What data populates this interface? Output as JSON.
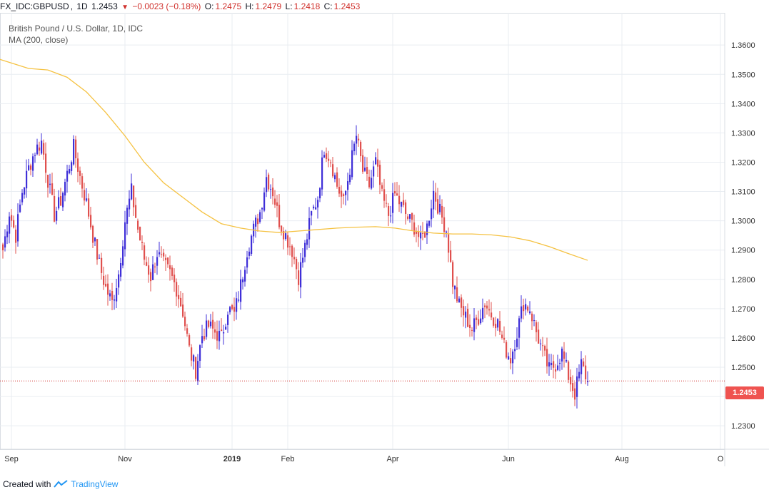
{
  "header": {
    "symbol": "FX_IDC:GBPUSD",
    "interval": "1D",
    "last": "1.2453",
    "change": "−0.0023 (−0.18%)",
    "o_label": "O:",
    "o_value": "1.2475",
    "h_label": "H:",
    "h_value": "1.2479",
    "l_label": "L:",
    "l_value": "1.2418",
    "c_label": "C:",
    "c_value": "1.2453"
  },
  "legend": {
    "title": "British Pound / U.S. Dollar, 1D, IDC",
    "indicator": "MA (200, close)"
  },
  "footer": {
    "created_with": "Created with",
    "brand": "TradingView"
  },
  "price_tag": "1.2453",
  "colors": {
    "up": "#3f2fd8",
    "down": "#e0504e",
    "ma": "#f5c242",
    "grid": "#e9edf2",
    "last_line": "#d0312d"
  },
  "chart_data": {
    "type": "candlestick",
    "title": "British Pound / U.S. Dollar, 1D, IDC",
    "ylim": [
      1.222,
      1.371
    ],
    "y_ticks": [
      "1.3600",
      "1.3500",
      "1.3400",
      "1.3300",
      "1.3200",
      "1.3100",
      "1.3000",
      "1.2900",
      "1.2800",
      "1.2700",
      "1.2600",
      "1.2500",
      "1.2400",
      "1.2300"
    ],
    "x_ticks": [
      "Sep",
      "Nov",
      "2019",
      "Feb",
      "Apr",
      "Jun",
      "Aug",
      "O"
    ],
    "last_price": 1.2453,
    "close_path": [
      [
        0,
        1.29
      ],
      [
        3,
        1.303
      ],
      [
        6,
        1.295
      ],
      [
        9,
        1.31
      ],
      [
        12,
        1.318
      ],
      [
        15,
        1.324
      ],
      [
        18,
        1.327
      ],
      [
        21,
        1.314
      ],
      [
        24,
        1.302
      ],
      [
        27,
        1.307
      ],
      [
        30,
        1.316
      ],
      [
        33,
        1.325
      ],
      [
        36,
        1.315
      ],
      [
        39,
        1.306
      ],
      [
        42,
        1.295
      ],
      [
        45,
        1.285
      ],
      [
        48,
        1.277
      ],
      [
        51,
        1.272
      ],
      [
        54,
        1.282
      ],
      [
        57,
        1.3
      ],
      [
        60,
        1.31
      ],
      [
        63,
        1.297
      ],
      [
        66,
        1.287
      ],
      [
        69,
        1.281
      ],
      [
        72,
        1.289
      ],
      [
        75,
        1.285
      ],
      [
        78,
        1.282
      ],
      [
        81,
        1.277
      ],
      [
        84,
        1.269
      ],
      [
        87,
        1.256
      ],
      [
        90,
        1.249
      ],
      [
        93,
        1.261
      ],
      [
        96,
        1.264
      ],
      [
        99,
        1.262
      ],
      [
        102,
        1.26
      ],
      [
        105,
        1.27
      ],
      [
        108,
        1.268
      ],
      [
        111,
        1.278
      ],
      [
        114,
        1.29
      ],
      [
        117,
        1.297
      ],
      [
        120,
        1.303
      ],
      [
        123,
        1.315
      ],
      [
        126,
        1.31
      ],
      [
        129,
        1.3
      ],
      [
        132,
        1.295
      ],
      [
        135,
        1.29
      ],
      [
        138,
        1.281
      ],
      [
        141,
        1.291
      ],
      [
        144,
        1.302
      ],
      [
        147,
        1.308
      ],
      [
        150,
        1.325
      ],
      [
        153,
        1.321
      ],
      [
        156,
        1.312
      ],
      [
        159,
        1.306
      ],
      [
        162,
        1.318
      ],
      [
        165,
        1.329
      ],
      [
        168,
        1.317
      ],
      [
        171,
        1.312
      ],
      [
        174,
        1.32
      ],
      [
        177,
        1.308
      ],
      [
        180,
        1.302
      ],
      [
        183,
        1.309
      ],
      [
        186,
        1.305
      ],
      [
        189,
        1.301
      ],
      [
        192,
        1.298
      ],
      [
        195,
        1.293
      ],
      [
        198,
        1.298
      ],
      [
        201,
        1.31
      ],
      [
        204,
        1.303
      ],
      [
        207,
        1.297
      ],
      [
        210,
        1.279
      ],
      [
        213,
        1.271
      ],
      [
        216,
        1.267
      ],
      [
        219,
        1.263
      ],
      [
        222,
        1.267
      ],
      [
        225,
        1.272
      ],
      [
        228,
        1.268
      ],
      [
        231,
        1.265
      ],
      [
        234,
        1.257
      ],
      [
        237,
        1.253
      ],
      [
        240,
        1.262
      ],
      [
        243,
        1.272
      ],
      [
        246,
        1.27
      ],
      [
        249,
        1.262
      ],
      [
        252,
        1.255
      ],
      [
        255,
        1.249
      ],
      [
        258,
        1.251
      ],
      [
        261,
        1.255
      ],
      [
        264,
        1.247
      ],
      [
        267,
        1.241
      ],
      [
        270,
        1.251
      ],
      [
        273,
        1.2453
      ]
    ],
    "ma200": [
      [
        -3,
        1.3555
      ],
      [
        12,
        1.352
      ],
      [
        21,
        1.3515
      ],
      [
        30,
        1.349
      ],
      [
        39,
        1.344
      ],
      [
        48,
        1.337
      ],
      [
        57,
        1.329
      ],
      [
        66,
        1.32
      ],
      [
        75,
        1.313
      ],
      [
        84,
        1.308
      ],
      [
        93,
        1.303
      ],
      [
        102,
        1.299
      ],
      [
        111,
        1.2975
      ],
      [
        120,
        1.2965
      ],
      [
        129,
        1.296
      ],
      [
        138,
        1.2965
      ],
      [
        147,
        1.297
      ],
      [
        156,
        1.2975
      ],
      [
        165,
        1.2978
      ],
      [
        174,
        1.298
      ],
      [
        183,
        1.2975
      ],
      [
        192,
        1.2965
      ],
      [
        201,
        1.2958
      ],
      [
        210,
        1.2955
      ],
      [
        219,
        1.2955
      ],
      [
        228,
        1.2952
      ],
      [
        237,
        1.2945
      ],
      [
        246,
        1.2932
      ],
      [
        255,
        1.2912
      ],
      [
        264,
        1.2888
      ],
      [
        273,
        1.2865
      ]
    ]
  }
}
